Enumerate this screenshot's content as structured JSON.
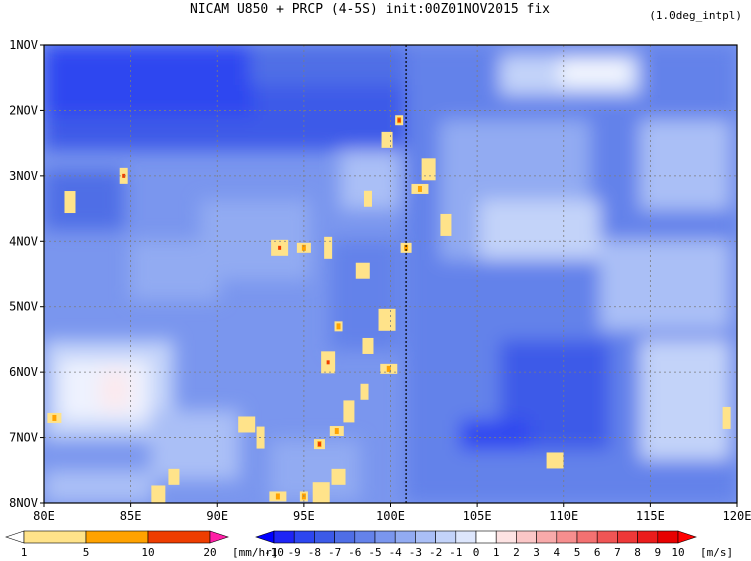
{
  "chart_data": {
    "type": "heatmap",
    "title": "NICAM  U850 + PRCP (4-5S) init:00Z01NOV2015 fix",
    "subtitle": "(1.0deg_intpl)",
    "x_ticks": [
      "80E",
      "85E",
      "90E",
      "95E",
      "100E",
      "105E",
      "110E",
      "115E",
      "120E"
    ],
    "x_range": [
      80,
      120
    ],
    "y_ticks": [
      "1NOV",
      "2NOV",
      "3NOV",
      "4NOV",
      "5NOV",
      "6NOV",
      "7NOV",
      "8NOV"
    ],
    "y_range": [
      1,
      8
    ],
    "y_axis_reversed": true,
    "grid": "dotted",
    "reference_line": {
      "lon": 100.9,
      "style": "dashed",
      "color": "#000000"
    },
    "colorbars": [
      {
        "name": "PRCP",
        "unit": "[mm/hr]",
        "tick_labels": [
          "1",
          "5",
          "10",
          "20"
        ],
        "colors": [
          "#ffffff",
          "#ffe38a",
          "#ffa200",
          "#ee3d00",
          "#ff1fa6"
        ]
      },
      {
        "name": "U850",
        "unit": "[m/s]",
        "tick_labels": [
          "-10",
          "-9",
          "-8",
          "-7",
          "-6",
          "-5",
          "-4",
          "-3",
          "-2",
          "-1",
          "0",
          "1",
          "2",
          "3",
          "4",
          "5",
          "6",
          "7",
          "8",
          "9",
          "10"
        ],
        "colors": [
          "#0000ff",
          "#1e24f5",
          "#2d46f0",
          "#3c5ae8",
          "#4f6ee6",
          "#6482ea",
          "#7a96ee",
          "#92abf2",
          "#aabff6",
          "#c3d3f9",
          "#dde6fc",
          "#ffffff",
          "#fde3e3",
          "#fbc7c7",
          "#f8aaaa",
          "#f68e8e",
          "#f37171",
          "#f05555",
          "#ee3838",
          "#eb1c1c",
          "#e80000",
          "#ff0000"
        ]
      }
    ],
    "precip_events": [
      {
        "x": 100.5,
        "y": 2.15
      },
      {
        "x": 99.8,
        "y": 2.45
      },
      {
        "x": 102.2,
        "y": 2.9
      },
      {
        "x": 101.7,
        "y": 3.2
      },
      {
        "x": 98.7,
        "y": 3.35
      },
      {
        "x": 103.2,
        "y": 3.75
      },
      {
        "x": 95.0,
        "y": 4.1
      },
      {
        "x": 93.6,
        "y": 4.1
      },
      {
        "x": 96.4,
        "y": 4.1
      },
      {
        "x": 100.9,
        "y": 4.1
      },
      {
        "x": 98.4,
        "y": 4.45
      },
      {
        "x": 99.8,
        "y": 5.2
      },
      {
        "x": 97.0,
        "y": 5.3
      },
      {
        "x": 98.7,
        "y": 5.6
      },
      {
        "x": 96.4,
        "y": 5.85
      },
      {
        "x": 99.9,
        "y": 5.95
      },
      {
        "x": 98.5,
        "y": 6.3
      },
      {
        "x": 97.6,
        "y": 6.6
      },
      {
        "x": 96.9,
        "y": 6.9
      },
      {
        "x": 91.7,
        "y": 6.8
      },
      {
        "x": 92.5,
        "y": 7.0
      },
      {
        "x": 95.9,
        "y": 7.1
      },
      {
        "x": 97.0,
        "y": 7.6
      },
      {
        "x": 96.0,
        "y": 7.85
      },
      {
        "x": 95.0,
        "y": 7.9
      },
      {
        "x": 87.5,
        "y": 7.6
      },
      {
        "x": 86.6,
        "y": 7.9
      },
      {
        "x": 93.5,
        "y": 7.9
      },
      {
        "x": 84.6,
        "y": 3.0
      },
      {
        "x": 81.5,
        "y": 3.4
      },
      {
        "x": 80.6,
        "y": 6.7
      },
      {
        "x": 109.5,
        "y": 7.35
      },
      {
        "x": 119.4,
        "y": 6.7
      }
    ]
  }
}
